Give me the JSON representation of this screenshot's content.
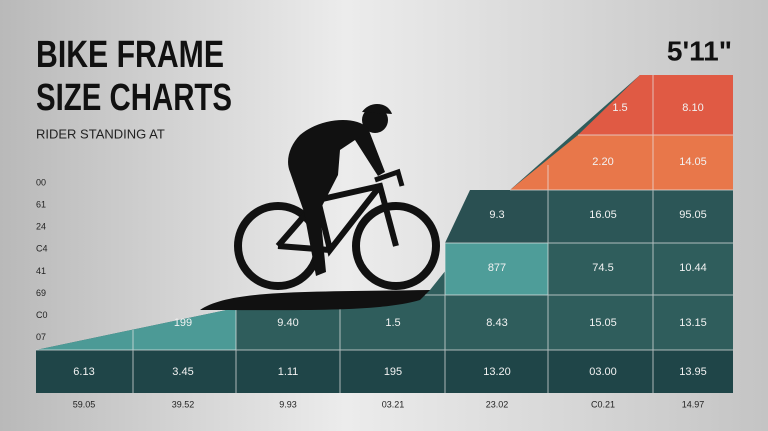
{
  "title_lines": [
    "BIKE FRAME",
    "SIZE CHARTS"
  ],
  "subtitle": "RIDER STANDING AT",
  "height": "5'11\"",
  "left_labels": [
    "00",
    "61",
    "24",
    "C4",
    "41",
    "69",
    "C0",
    "07"
  ],
  "bottom_labels": [
    "59.05",
    "39.52",
    "9.93",
    "03.21",
    "23.02",
    "C0.21",
    "14.97"
  ],
  "table": {
    "rows": [
      [
        "1.5",
        "8.10"
      ],
      [
        "2.20",
        "14.05"
      ],
      [
        "9.3",
        "16.05",
        "95.05"
      ],
      [
        "877",
        "74.5",
        "10.44"
      ],
      [
        "199",
        "9.40",
        "1.5",
        "8.43",
        "15.05",
        "13.15"
      ],
      [
        "6.13",
        "3.45",
        "1.11",
        "195",
        "13.20",
        "03.00",
        "13.95"
      ]
    ]
  }
}
